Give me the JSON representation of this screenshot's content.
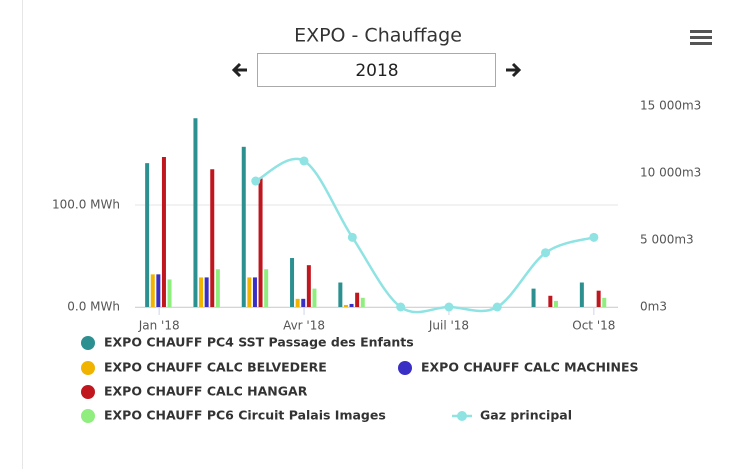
{
  "selector": {
    "year": "2018"
  },
  "chart_data": {
    "type": "bar",
    "title": "EXPO - Chauffage",
    "categories": [
      "Jan '18",
      null,
      null,
      "Avr '18",
      null,
      null,
      "Juil '18",
      null,
      null,
      "Oct '18"
    ],
    "ylim": [
      0,
      197
    ],
    "yticks": [
      {
        "value": 0,
        "label": "0.0 MWh"
      },
      {
        "value": 100,
        "label": "100.0 MWh"
      }
    ],
    "y2lim": [
      0,
      15000
    ],
    "y2ticks": [
      {
        "value": 0,
        "label": "0m3"
      },
      {
        "value": 5000,
        "label": "5 000m3"
      },
      {
        "value": 10000,
        "label": "10 000m3"
      },
      {
        "value": 15000,
        "label": "15 000m3"
      }
    ],
    "grid": true,
    "series": [
      {
        "name": "EXPO CHAUFF PC4 SST Passage des Enfants",
        "color": "#2b908f",
        "values": [
          141,
          185,
          157,
          48,
          24,
          0,
          0,
          0,
          18,
          24
        ]
      },
      {
        "name": "EXPO CHAUFF CALC BELVEDERE",
        "color": "#f0b400",
        "values": [
          32,
          29,
          29,
          8,
          2,
          0,
          0,
          0,
          0,
          0
        ]
      },
      {
        "name": "EXPO CHAUFF CALC MACHINES",
        "color": "#3a2fc4",
        "values": [
          32,
          29,
          29,
          8,
          3,
          0,
          0,
          0,
          0,
          0
        ]
      },
      {
        "name": "EXPO CHAUFF CALC HANGAR",
        "color": "#c0171f",
        "values": [
          147,
          135,
          126,
          41,
          14,
          0,
          0,
          0,
          11,
          16
        ]
      },
      {
        "name": "EXPO CHAUFF PC6 Circuit Palais Images",
        "color": "#90ee7e",
        "values": [
          27,
          37,
          37,
          18,
          9,
          0,
          0,
          0,
          6,
          9
        ]
      },
      {
        "name": "Gaz principal",
        "type": "line",
        "axis": "y2",
        "color": "#8fe3e3",
        "values": [
          null,
          null,
          9400,
          10900,
          5200,
          0,
          0,
          0,
          4050,
          5200
        ]
      }
    ]
  }
}
